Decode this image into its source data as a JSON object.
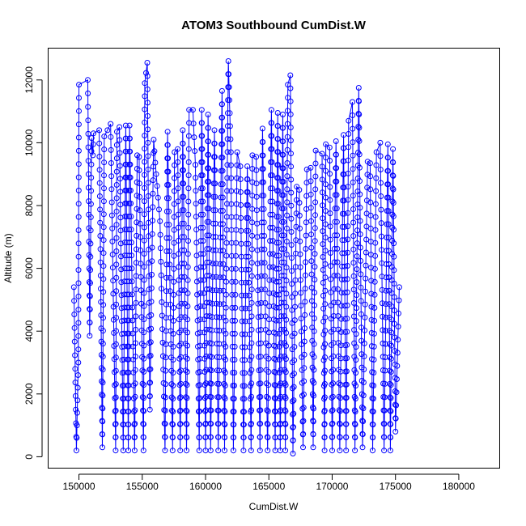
{
  "chart_data": {
    "type": "line",
    "title": "ATOM3 Southbound CumDist.W",
    "xlabel": "CumDist.W",
    "ylabel": "Altitude (m)",
    "xlim": [
      147600,
      183200
    ],
    "ylim": [
      -350,
      13000
    ],
    "xticks": [
      150000,
      155000,
      160000,
      165000,
      170000,
      175000,
      180000
    ],
    "xtick_labels": [
      "150000",
      "155000",
      "160000",
      "165000",
      "170000",
      "175000",
      "180000"
    ],
    "yticks": [
      0,
      2000,
      4000,
      6000,
      8000,
      10000,
      12000
    ],
    "ytick_labels": [
      "0",
      "2000",
      "4000",
      "6000",
      "8000",
      "10000",
      "12000"
    ],
    "grid": false,
    "series_color": "#0000ff",
    "marker": "open-circle",
    "vertices": [
      [
        149600,
        5400
      ],
      [
        149800,
        200
      ],
      [
        149950,
        3000
      ],
      [
        150000,
        11850
      ],
      [
        150700,
        12000
      ],
      [
        150850,
        3850
      ],
      [
        151000,
        10150
      ],
      [
        151100,
        9600
      ],
      [
        151150,
        10300
      ],
      [
        151600,
        10400
      ],
      [
        151850,
        300
      ],
      [
        152000,
        10200
      ],
      [
        152250,
        10400
      ],
      [
        152500,
        10600
      ],
      [
        152900,
        200
      ],
      [
        153000,
        10350
      ],
      [
        153200,
        10500
      ],
      [
        153500,
        200
      ],
      [
        153700,
        10550
      ],
      [
        153900,
        200
      ],
      [
        154000,
        10550
      ],
      [
        154400,
        200
      ],
      [
        154600,
        9600
      ],
      [
        154750,
        9550
      ],
      [
        155100,
        200
      ],
      [
        155200,
        11900
      ],
      [
        155400,
        12550
      ],
      [
        155600,
        1500
      ],
      [
        155900,
        10100
      ],
      [
        156100,
        9000
      ],
      [
        156400,
        7500
      ],
      [
        156800,
        200
      ],
      [
        157000,
        10350
      ],
      [
        157400,
        200
      ],
      [
        157550,
        9700
      ],
      [
        157800,
        9800
      ],
      [
        158000,
        200
      ],
      [
        158200,
        10400
      ],
      [
        158500,
        200
      ],
      [
        158700,
        11050
      ],
      [
        159000,
        11050
      ],
      [
        159200,
        9300
      ],
      [
        159500,
        200
      ],
      [
        159700,
        11050
      ],
      [
        160000,
        200
      ],
      [
        160200,
        10900
      ],
      [
        160400,
        200
      ],
      [
        160700,
        10400
      ],
      [
        161000,
        200
      ],
      [
        161300,
        11650
      ],
      [
        161500,
        200
      ],
      [
        161800,
        12600
      ],
      [
        162000,
        9700
      ],
      [
        162200,
        200
      ],
      [
        162500,
        9700
      ],
      [
        162750,
        9250
      ],
      [
        163000,
        200
      ],
      [
        163300,
        9250
      ],
      [
        163600,
        200
      ],
      [
        163700,
        9600
      ],
      [
        164000,
        9550
      ],
      [
        164300,
        200
      ],
      [
        164500,
        10450
      ],
      [
        164900,
        200
      ],
      [
        165200,
        11050
      ],
      [
        165500,
        200
      ],
      [
        165700,
        10950
      ],
      [
        165900,
        200
      ],
      [
        166100,
        10900
      ],
      [
        166300,
        200
      ],
      [
        166500,
        11850
      ],
      [
        166700,
        12150
      ],
      [
        166900,
        100
      ],
      [
        167200,
        8600
      ],
      [
        167400,
        8500
      ],
      [
        167700,
        300
      ],
      [
        168000,
        9150
      ],
      [
        168300,
        9200
      ],
      [
        168500,
        300
      ],
      [
        168700,
        9750
      ],
      [
        169200,
        9650
      ],
      [
        169400,
        200
      ],
      [
        169500,
        9950
      ],
      [
        169800,
        9850
      ],
      [
        170000,
        200
      ],
      [
        170300,
        10050
      ],
      [
        170600,
        200
      ],
      [
        170900,
        10250
      ],
      [
        171100,
        200
      ],
      [
        171300,
        10700
      ],
      [
        171600,
        11300
      ],
      [
        171800,
        200
      ],
      [
        172100,
        11750
      ],
      [
        172400,
        300
      ],
      [
        172800,
        9400
      ],
      [
        173000,
        9350
      ],
      [
        173200,
        200
      ],
      [
        173500,
        9700
      ],
      [
        173800,
        10000
      ],
      [
        174100,
        200
      ],
      [
        174400,
        9950
      ],
      [
        174600,
        200
      ],
      [
        174800,
        9800
      ],
      [
        175000,
        800
      ],
      [
        175300,
        5400
      ]
    ]
  }
}
